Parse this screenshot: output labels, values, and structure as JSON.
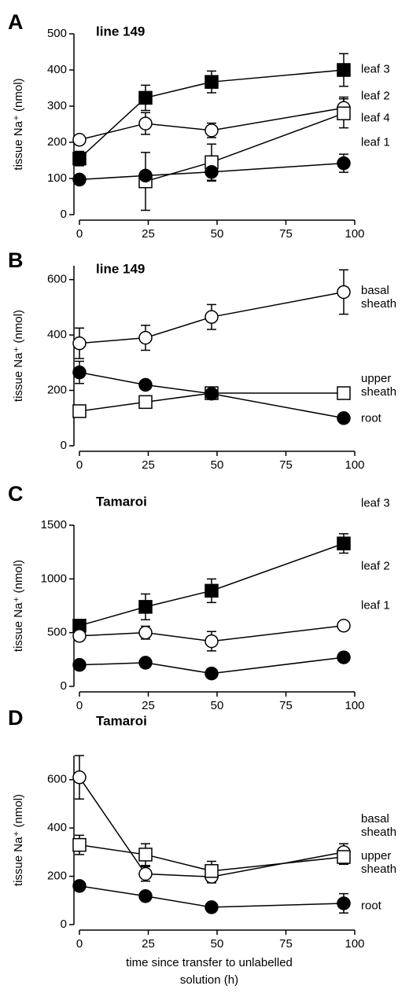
{
  "chart_data": [
    {
      "type": "line",
      "panel_label": "A",
      "title": "line 149",
      "y_label": "tissue Na⁺ (nmol)",
      "x": [
        0,
        24,
        48,
        96
      ],
      "xlim": [
        0,
        100
      ],
      "xticks": [
        0,
        25,
        50,
        75,
        100
      ],
      "ylim": [
        0,
        500
      ],
      "yticks": [
        0,
        100,
        200,
        300,
        400,
        500
      ],
      "series": [
        {
          "name": "leaf 3",
          "marker": "square",
          "color": "#000000",
          "values": [
            155,
            323,
            367,
            400
          ],
          "errors": [
            20,
            35,
            30,
            45
          ]
        },
        {
          "name": "leaf 2",
          "marker": "circle",
          "color": "#ffffff",
          "values": [
            207,
            252,
            233,
            295
          ],
          "errors": [
            10,
            30,
            20,
            30
          ]
        },
        {
          "name": "leaf 4",
          "marker": "square",
          "color": "#ffffff",
          "values": [
            null,
            92,
            145,
            280
          ],
          "errors": [
            null,
            80,
            50,
            40
          ]
        },
        {
          "name": "leaf 1",
          "marker": "circle",
          "color": "#000000",
          "values": [
            97,
            108,
            118,
            142
          ],
          "errors": [
            null,
            null,
            25,
            25
          ]
        }
      ]
    },
    {
      "type": "line",
      "panel_label": "B",
      "title": "line 149",
      "y_label": "tissue Na⁺ (nmol)",
      "x": [
        0,
        24,
        48,
        96
      ],
      "xlim": [
        0,
        100
      ],
      "xticks": [
        0,
        25,
        50,
        75,
        100
      ],
      "ylim": [
        0,
        650
      ],
      "yticks": [
        0,
        200,
        400,
        600
      ],
      "series": [
        {
          "name": "basal sheath",
          "marker": "circle",
          "color": "#ffffff",
          "values": [
            370,
            390,
            465,
            555
          ],
          "errors": [
            55,
            45,
            45,
            80
          ]
        },
        {
          "name": "upper sheath",
          "marker": "square",
          "color": "#ffffff",
          "values": [
            125,
            158,
            190,
            190
          ],
          "errors": [
            null,
            null,
            null,
            null
          ]
        },
        {
          "name": "root",
          "marker": "circle",
          "color": "#000000",
          "values": [
            265,
            220,
            188,
            100
          ],
          "errors": [
            40,
            null,
            null,
            null
          ]
        }
      ]
    },
    {
      "type": "line",
      "panel_label": "C",
      "title": "Tamaroi",
      "y_label": "tissue Na⁺ (nmol)",
      "x": [
        0,
        24,
        48,
        96
      ],
      "xlim": [
        0,
        100
      ],
      "xticks": [
        0,
        25,
        50,
        75,
        100
      ],
      "ylim": [
        0,
        1500
      ],
      "yticks": [
        0,
        500,
        1000,
        1500
      ],
      "series": [
        {
          "name": "leaf 3",
          "marker": "square",
          "color": "#000000",
          "values": [
            565,
            740,
            890,
            1330
          ],
          "errors": [
            30,
            120,
            110,
            90
          ]
        },
        {
          "name": "leaf 2",
          "marker": "circle",
          "color": "#ffffff",
          "values": [
            470,
            500,
            420,
            565
          ],
          "errors": [
            null,
            60,
            90,
            null
          ]
        },
        {
          "name": "leaf 1",
          "marker": "circle",
          "color": "#000000",
          "values": [
            200,
            220,
            120,
            270
          ],
          "errors": [
            null,
            null,
            null,
            null
          ]
        }
      ]
    },
    {
      "type": "line",
      "panel_label": "D",
      "title": "Tamaroi",
      "y_label": "tissue Na⁺ (nmol)",
      "x_label": [
        "time since transfer to unlabelled",
        "solution (h)"
      ],
      "x": [
        0,
        24,
        48,
        96
      ],
      "xlim": [
        0,
        100
      ],
      "xticks": [
        0,
        25,
        50,
        75,
        100
      ],
      "ylim": [
        0,
        700
      ],
      "yticks": [
        0,
        200,
        400,
        600
      ],
      "series": [
        {
          "name": "basal sheath",
          "marker": "circle",
          "color": "#ffffff",
          "values": [
            610,
            210,
            198,
            300
          ],
          "errors": [
            90,
            30,
            25,
            35
          ]
        },
        {
          "name": "upper sheath",
          "marker": "square",
          "color": "#ffffff",
          "values": [
            330,
            290,
            222,
            280
          ],
          "errors": [
            40,
            45,
            40,
            30
          ]
        },
        {
          "name": "root",
          "marker": "circle",
          "color": "#000000",
          "values": [
            160,
            118,
            72,
            88
          ],
          "errors": [
            null,
            null,
            null,
            40
          ]
        }
      ]
    }
  ]
}
